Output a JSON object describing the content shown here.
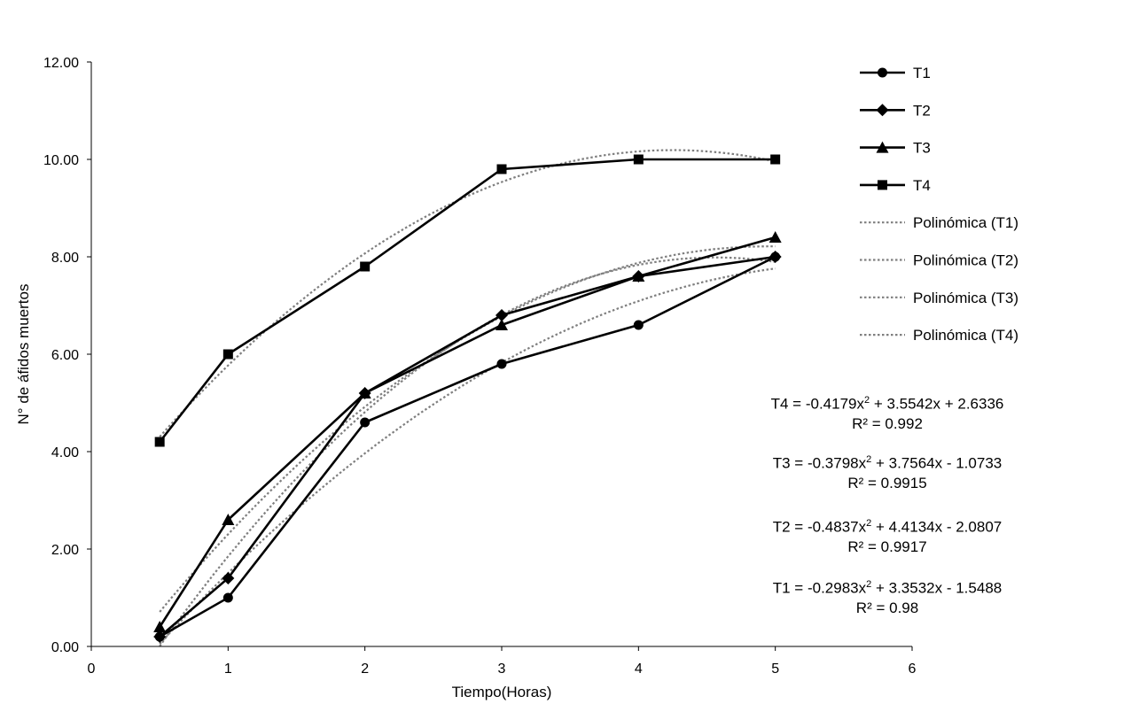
{
  "chart_data": {
    "type": "line",
    "xlabel": "Tiempo(Horas)",
    "ylabel": "N° de áfidos muertos",
    "xlim": [
      0,
      6
    ],
    "ylim": [
      0,
      12
    ],
    "x_ticks": [
      "0",
      "1",
      "2",
      "3",
      "4",
      "5",
      "6"
    ],
    "y_ticks": [
      "0.00",
      "2.00",
      "4.00",
      "6.00",
      "8.00",
      "10.00",
      "12.00"
    ],
    "grid": false,
    "legend_position": "right",
    "x": [
      0.5,
      1,
      2,
      3,
      4,
      5
    ],
    "series": [
      {
        "name": "T1",
        "marker": "circle",
        "values": [
          0.2,
          1.0,
          4.6,
          5.8,
          6.6,
          8.0
        ]
      },
      {
        "name": "T2",
        "marker": "diamond",
        "values": [
          0.2,
          1.4,
          5.2,
          6.8,
          7.6,
          8.0
        ]
      },
      {
        "name": "T3",
        "marker": "triangle",
        "values": [
          0.4,
          2.6,
          5.2,
          6.6,
          7.6,
          8.4
        ]
      },
      {
        "name": "T4",
        "marker": "square",
        "values": [
          4.2,
          6.0,
          7.8,
          9.8,
          10.0,
          10.0
        ]
      }
    ],
    "trendlines": [
      {
        "name": "Polinómica (T1)",
        "type": "polynomial",
        "coefficients": [
          -0.2983,
          3.3532,
          -1.5488
        ]
      },
      {
        "name": "Polinómica (T2)",
        "type": "polynomial",
        "coefficients": [
          -0.4837,
          4.4134,
          -2.0807
        ]
      },
      {
        "name": "Polinómica (T3)",
        "type": "polynomial",
        "coefficients": [
          -0.3798,
          3.7564,
          -1.0733
        ]
      },
      {
        "name": "Polinómica (T4)",
        "type": "polynomial",
        "coefficients": [
          -0.4179,
          3.5542,
          2.6336
        ]
      }
    ],
    "equations": [
      {
        "label": "T4 = -0.4179x",
        "tail": " + 3.5542x + 2.6336",
        "exp": "2",
        "r2": "R² = 0.992"
      },
      {
        "label": "T3 = -0.3798x",
        "tail": " + 3.7564x - 1.0733",
        "exp": "2",
        "r2": "R² = 0.9915"
      },
      {
        "label": "T2 = -0.4837x",
        "tail": " + 4.4134x - 2.0807",
        "exp": "2",
        "r2": "R² = 0.9917"
      },
      {
        "label": "T1 = -0.2983x",
        "tail": " + 3.3532x - 1.5488",
        "exp": "2",
        "r2": "R² = 0.98"
      }
    ],
    "colors": {
      "series": "#000000",
      "trendline": "#7f7f7f",
      "axis": "#000000"
    }
  }
}
